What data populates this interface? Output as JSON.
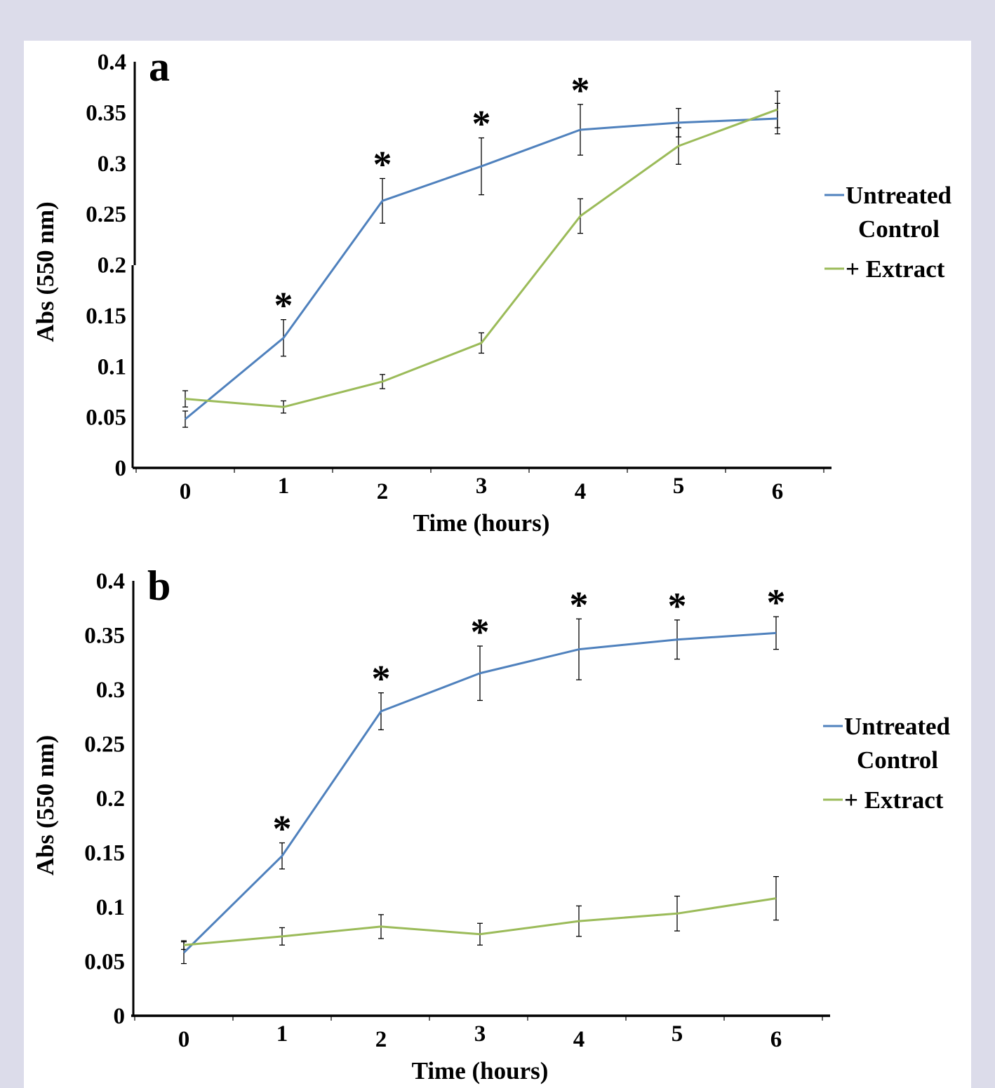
{
  "chart_data": [
    {
      "type": "line",
      "panel_label": "a",
      "xlabel": "Time (hours)",
      "ylabel": "Abs (550 nm)",
      "x": [
        0,
        1,
        2,
        3,
        4,
        5,
        6
      ],
      "ylim": [
        0,
        0.4
      ],
      "yticks": [
        "0",
        "0.05",
        "0.1",
        "0.15",
        "0.2",
        "0.25",
        "0.3",
        "0.35",
        "0.4"
      ],
      "legend_position": "right",
      "series": [
        {
          "name": "Untreated Control",
          "color": "#4f81bd",
          "values": [
            0.048,
            0.128,
            0.263,
            0.297,
            0.333,
            0.34,
            0.344
          ],
          "errors": [
            0.008,
            0.018,
            0.022,
            0.028,
            0.025,
            0.014,
            0.015
          ]
        },
        {
          "name": "+ Extract",
          "color": "#9bbb59",
          "values": [
            0.068,
            0.06,
            0.085,
            0.123,
            0.248,
            0.317,
            0.353
          ],
          "errors": [
            0.008,
            0.006,
            0.007,
            0.01,
            0.017,
            0.018,
            0.018
          ]
        }
      ],
      "significance": {
        "symbol": "*",
        "x": [
          1,
          2,
          3,
          4
        ]
      }
    },
    {
      "type": "line",
      "panel_label": "b",
      "xlabel": "Time (hours)",
      "ylabel": "Abs (550 nm)",
      "x": [
        0,
        1,
        2,
        3,
        4,
        5,
        6
      ],
      "ylim": [
        0,
        0.4
      ],
      "yticks": [
        "0",
        "0.05",
        "0.1",
        "0.15",
        "0.2",
        "0.25",
        "0.3",
        "0.35",
        "0.4"
      ],
      "legend_position": "right",
      "series": [
        {
          "name": "Untreated Control",
          "color": "#4f81bd",
          "values": [
            0.058,
            0.147,
            0.28,
            0.315,
            0.337,
            0.346,
            0.352
          ],
          "errors": [
            0.01,
            0.012,
            0.017,
            0.025,
            0.028,
            0.018,
            0.015
          ]
        },
        {
          "name": "+ Extract",
          "color": "#9bbb59",
          "values": [
            0.065,
            0.073,
            0.082,
            0.075,
            0.087,
            0.094,
            0.108
          ],
          "errors": [
            0.004,
            0.008,
            0.011,
            0.01,
            0.014,
            0.016,
            0.02
          ]
        }
      ],
      "significance": {
        "symbol": "*",
        "x": [
          1,
          2,
          3,
          4,
          5,
          6
        ]
      }
    }
  ]
}
